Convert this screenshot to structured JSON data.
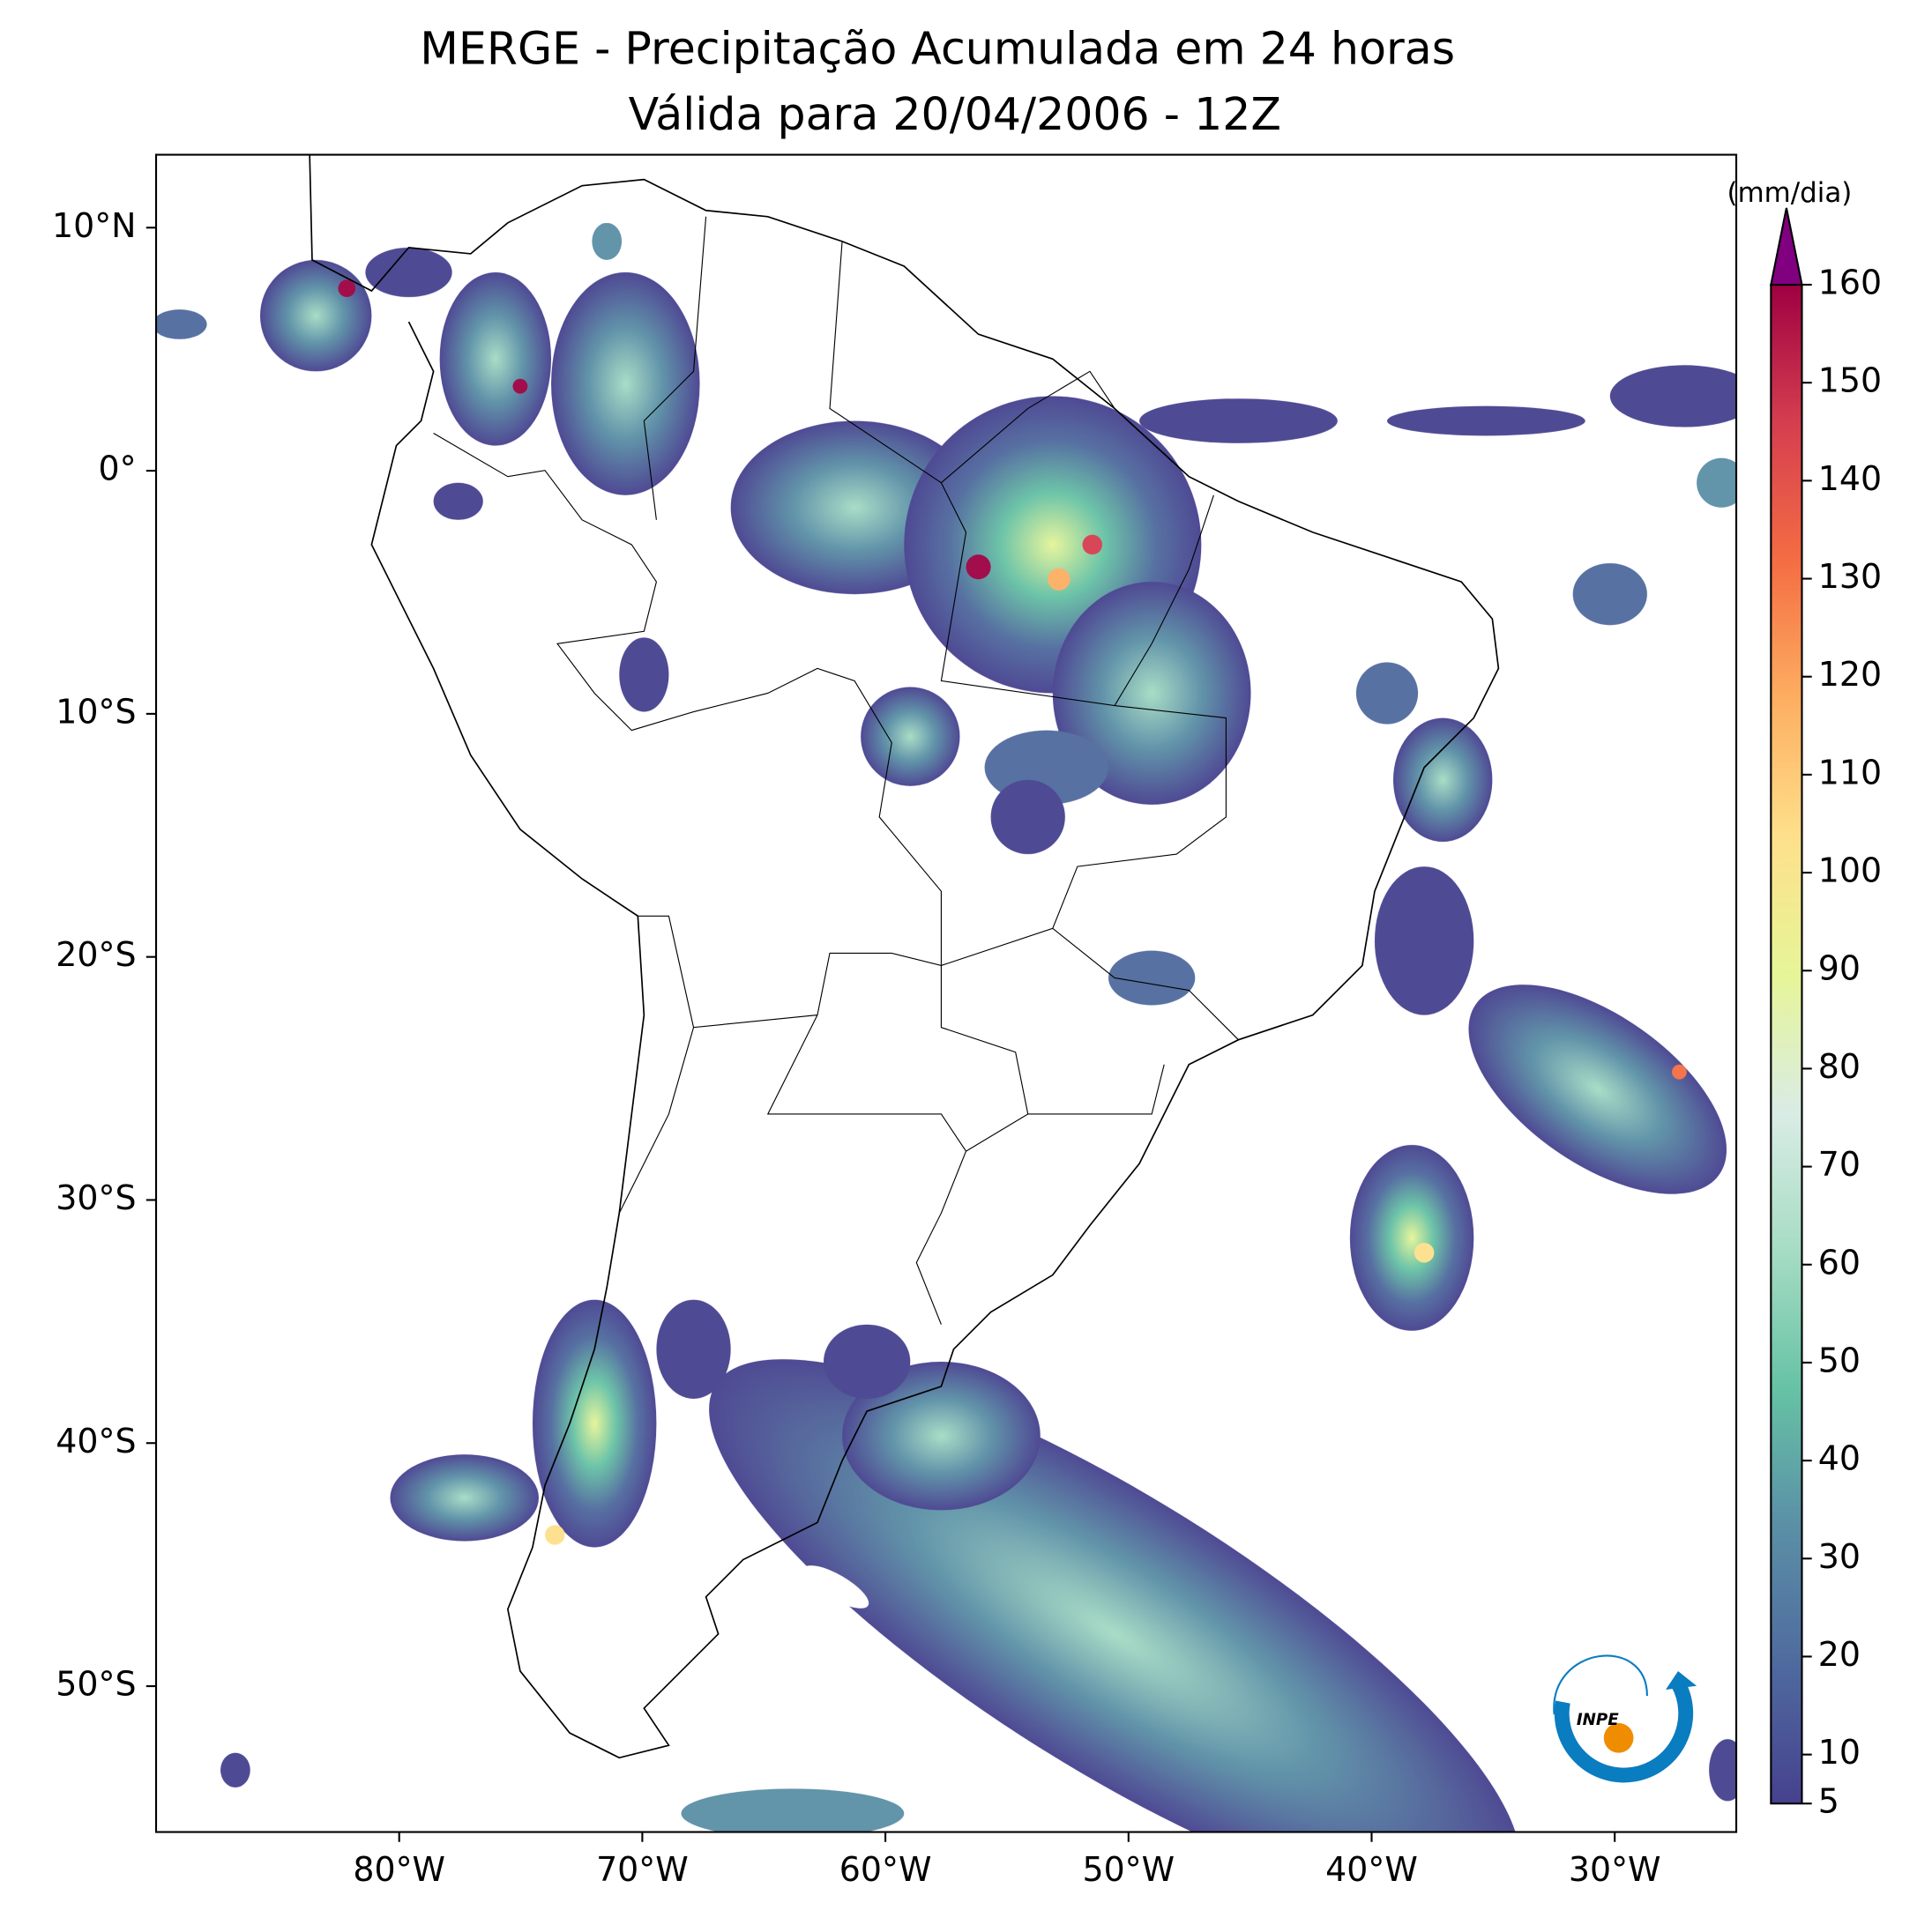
{
  "title": [
    "MERGE - Precipitação Acumulada em 24 horas",
    "Válida para 20/04/2006 - 12Z"
  ],
  "map": {
    "xlim": [
      -90,
      -25
    ],
    "ylim": [
      -56,
      13
    ],
    "xticks": [
      {
        "value": -80,
        "label": "80°W"
      },
      {
        "value": -70,
        "label": "70°W"
      },
      {
        "value": -60,
        "label": "60°W"
      },
      {
        "value": -50,
        "label": "50°W"
      },
      {
        "value": -40,
        "label": "40°W"
      },
      {
        "value": -30,
        "label": "30°W"
      }
    ],
    "yticks": [
      {
        "value": 10,
        "label": "10°N"
      },
      {
        "value": 0,
        "label": "0°"
      },
      {
        "value": -10,
        "label": "10°S"
      },
      {
        "value": -20,
        "label": "20°S"
      },
      {
        "value": -30,
        "label": "30°S"
      },
      {
        "value": -40,
        "label": "40°S"
      },
      {
        "value": -50,
        "label": "50°S"
      }
    ]
  },
  "colorbar": {
    "label": "(mm/dia)",
    "lim": [
      5,
      160
    ],
    "ticks": [
      5,
      10,
      20,
      30,
      40,
      50,
      60,
      70,
      80,
      90,
      100,
      110,
      120,
      130,
      140,
      150,
      160
    ],
    "colors": [
      "#46418f",
      "#4f6a9e",
      "#5a8fa6",
      "#66c2a5",
      "#a6dcc4",
      "#d9ece5",
      "#e6f598",
      "#fee08b",
      "#fdae61",
      "#f46d43",
      "#d53e4f",
      "#9e0142"
    ],
    "extend_color": "#800080"
  },
  "logo": "INPE"
}
